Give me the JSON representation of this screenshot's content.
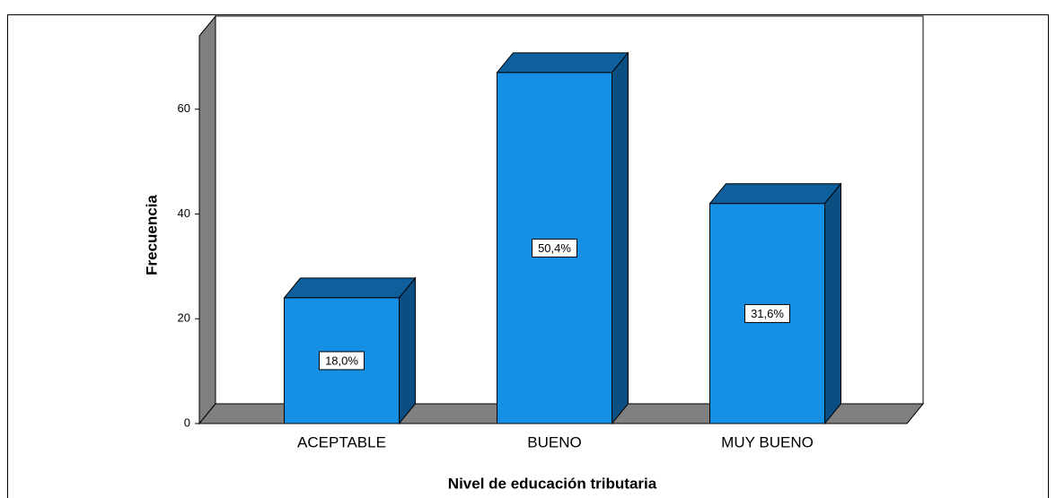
{
  "chart_data": {
    "type": "bar3d",
    "x_label": "Nivel de educación tributaria",
    "y_label": "Frecuencia",
    "categories": [
      "ACEPTABLE",
      "BUENO",
      "MUY BUENO"
    ],
    "values": [
      24,
      67,
      42
    ],
    "percentages": [
      18.0,
      50.4,
      31.6
    ],
    "percentage_labels": [
      "18,0%",
      "50,4%",
      "31,6%"
    ],
    "color": "#1690e4",
    "ylim": [
      0,
      74
    ],
    "yticks": [
      0,
      20,
      40,
      60
    ]
  }
}
